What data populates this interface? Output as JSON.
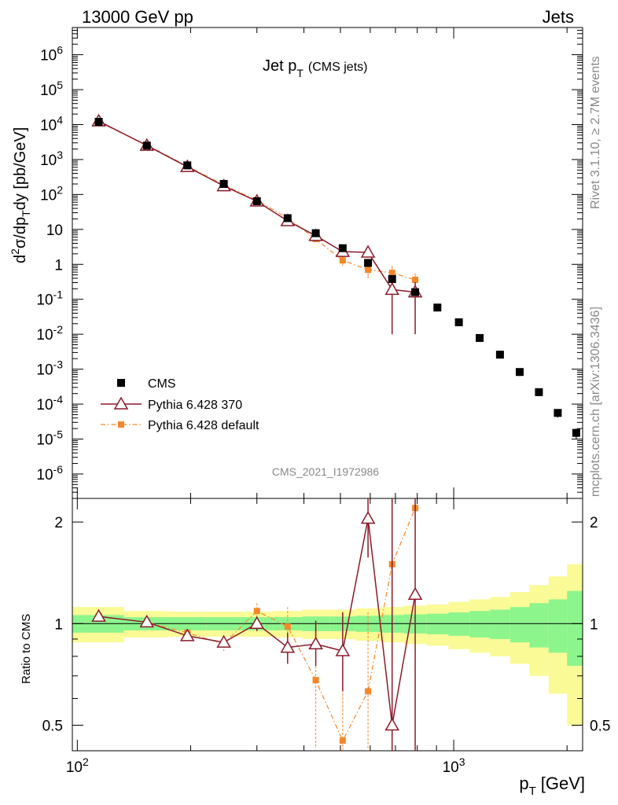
{
  "header": {
    "left": "13000 GeV pp",
    "right": "Jets",
    "side_top": "Rivet 3.1.10, ≥ 2.7M events",
    "side_bottom": "mcplots.cern.ch [arXiv:1306.3436]",
    "analysis_id": "CMS_2021_I1972986"
  },
  "colors": {
    "cms": "#000000",
    "pythia370": "#8b1a2b",
    "pythia_default": "#f5872a",
    "band_inner": "#8cf58c",
    "band_outer": "#fafa96"
  },
  "chart_data": [
    {
      "type": "line",
      "panel": "main",
      "title": "Jet p_T (CMS jets)",
      "title_main": "Jet p",
      "title_sub": "T",
      "title_paren": "(CMS jets)",
      "ylabel": "d²σ/dp_T dy [pb/GeV]",
      "xscale": "log",
      "yscale": "log",
      "xlim": [
        97,
        2200
      ],
      "ylim": [
        2e-07,
        6000000.0
      ],
      "y_tick_labels": [
        {
          "v": 1000000.0,
          "base": "10",
          "exp": "6"
        },
        {
          "v": 100000.0,
          "base": "10",
          "exp": "5"
        },
        {
          "v": 10000.0,
          "base": "10",
          "exp": "4"
        },
        {
          "v": 1000.0,
          "base": "10",
          "exp": "3"
        },
        {
          "v": 100.0,
          "base": "10",
          "exp": "2"
        },
        {
          "v": 10,
          "base": "10",
          "exp": ""
        },
        {
          "v": 1,
          "base": "1",
          "exp": ""
        },
        {
          "v": 0.1,
          "base": "10",
          "exp": "-1"
        },
        {
          "v": 0.01,
          "base": "10",
          "exp": "-2"
        },
        {
          "v": 0.001,
          "base": "10",
          "exp": "-3"
        },
        {
          "v": 0.0001,
          "base": "10",
          "exp": "-4"
        },
        {
          "v": 1e-05,
          "base": "10",
          "exp": "-5"
        },
        {
          "v": 1e-06,
          "base": "10",
          "exp": "-6"
        }
      ],
      "legend": {
        "position": "lower-left",
        "entries": [
          "CMS",
          "Pythia 6.428 370",
          "Pythia 6.428 default"
        ]
      },
      "series": [
        {
          "name": "CMS",
          "style": "square",
          "x": [
            114,
            153,
            196,
            245,
            300,
            362,
            430,
            507,
            592,
            686,
            790,
            905,
            1032,
            1172,
            1327,
            1497,
            1684,
            1890,
            2116
          ],
          "y": [
            12000,
            2500,
            680,
            200,
            64,
            21,
            7.8,
            2.9,
            1.1,
            0.38,
            0.16,
            0.058,
            0.022,
            0.0078,
            0.0026,
            0.00083,
            0.00022,
            5.6e-05,
            1.5e-05
          ],
          "err": [
            2000,
            300,
            80,
            25,
            7,
            2.5,
            1,
            0.4,
            0.15,
            0.06,
            0.03,
            0.01,
            0.004,
            0.0015,
            0.0005,
            0.0002,
            5e-05,
            1.5e-05,
            5e-06
          ]
        },
        {
          "name": "Pythia 6.428 370",
          "style": "triangle",
          "x": [
            114,
            153,
            196,
            245,
            300,
            362,
            430,
            507,
            592,
            686,
            790
          ],
          "y": [
            12500,
            2520,
            620,
            175,
            64,
            17.5,
            6.6,
            2.3,
            2.2,
            0.19,
            0.16
          ],
          "err_low": [
            1200,
            250,
            60,
            15,
            6,
            2,
            0.9,
            0.5,
            0.6,
            0.18,
            0.15
          ],
          "err_high": [
            1200,
            250,
            60,
            15,
            6,
            2,
            0.9,
            0.5,
            0.6,
            0.2,
            0.15
          ]
        },
        {
          "name": "Pythia 6.428 default",
          "style": "square-dashdot",
          "x": [
            114,
            153,
            196,
            245,
            300,
            362,
            430,
            507,
            592,
            686,
            790
          ],
          "y": [
            12000,
            2600,
            650,
            185,
            68,
            21,
            5.3,
            1.3,
            0.7,
            0.57,
            0.36
          ],
          "err": [
            1000,
            200,
            50,
            15,
            6,
            2.5,
            0.8,
            0.4,
            0.3,
            0.35,
            0.2
          ]
        }
      ]
    },
    {
      "type": "line",
      "panel": "ratio",
      "ylabel": "Ratio to CMS",
      "xlabel": "p_T [GeV]",
      "xlabel_main": "p",
      "xlabel_sub": "T",
      "xlabel_unit": "[GeV]",
      "xscale": "log",
      "yscale": "log",
      "xlim": [
        97,
        2200
      ],
      "ylim": [
        0.42,
        2.35
      ],
      "y_tick_labels": [
        {
          "v": 2,
          "label": "2"
        },
        {
          "v": 1,
          "label": "1"
        },
        {
          "v": 0.5,
          "label": "0.5"
        }
      ],
      "x_tick_labels": [
        {
          "v": 100,
          "base": "10",
          "exp": "2"
        },
        {
          "v": 1000,
          "base": "10",
          "exp": "3"
        }
      ],
      "band": {
        "edges": [
          97,
          133,
          174,
          220,
          272,
          331,
          396,
          468,
          549,
          639,
          738,
          848,
          969,
          1102,
          1250,
          1412,
          1590,
          1787,
          2000,
          2200
        ],
        "inner": [
          0.06,
          0.045,
          0.045,
          0.045,
          0.045,
          0.045,
          0.05,
          0.05,
          0.055,
          0.06,
          0.065,
          0.07,
          0.08,
          0.09,
          0.1,
          0.12,
          0.15,
          0.18,
          0.25
        ],
        "outer": [
          0.12,
          0.09,
          0.085,
          0.085,
          0.085,
          0.09,
          0.1,
          0.1,
          0.11,
          0.12,
          0.13,
          0.14,
          0.16,
          0.18,
          0.2,
          0.24,
          0.3,
          0.38,
          0.5
        ]
      },
      "series": [
        {
          "name": "Pythia 6.428 370",
          "style": "triangle",
          "x": [
            114,
            153,
            196,
            245,
            300,
            362,
            430,
            507,
            592,
            686,
            790
          ],
          "y": [
            1.05,
            1.01,
            0.92,
            0.88,
            1.0,
            0.85,
            0.87,
            0.83,
            2.05,
            0.5,
            1.22
          ],
          "err_low": [
            0.02,
            0.02,
            0.02,
            0.03,
            0.05,
            0.09,
            0.12,
            0.2,
            0.48,
            0.8,
            0.9
          ],
          "err_high": [
            0.02,
            0.02,
            0.02,
            0.03,
            0.05,
            0.09,
            0.15,
            0.25,
            0.6,
            2.0,
            2.0
          ]
        },
        {
          "name": "Pythia 6.428 default",
          "style": "square-dashdot",
          "x": [
            114,
            153,
            196,
            245,
            300,
            362,
            430,
            507,
            592,
            686,
            790
          ],
          "y": [
            1.05,
            1.01,
            0.94,
            0.87,
            1.09,
            0.98,
            0.68,
            0.45,
            0.63,
            1.5,
            2.2
          ],
          "err_low": [
            0.02,
            0.02,
            0.02,
            0.04,
            0.06,
            0.12,
            0.25,
            0.25,
            0.3,
            0.6,
            0.6
          ],
          "err_high": [
            0.02,
            0.02,
            0.02,
            0.04,
            0.06,
            0.14,
            0.3,
            0.3,
            0.45,
            0.8,
            0.5
          ]
        }
      ]
    }
  ]
}
